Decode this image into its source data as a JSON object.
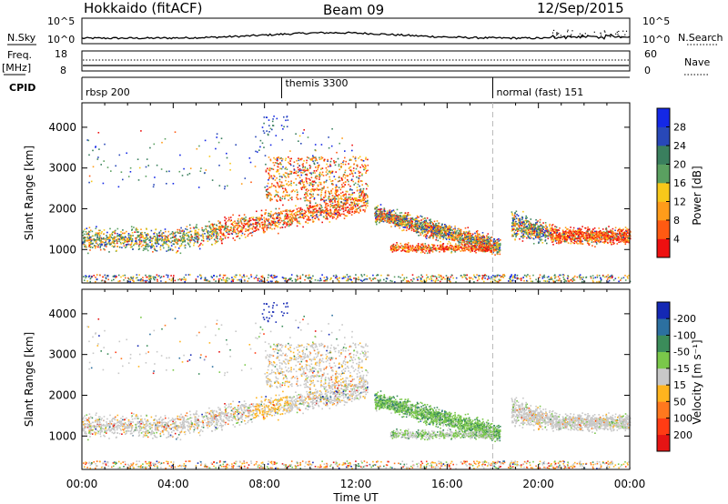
{
  "header": {
    "station": "Hokkaido (fitACF)",
    "beam": "Beam 09",
    "date": "12/Sep/2015"
  },
  "top_panels": {
    "nsky_label": "N.Sky",
    "nsky_ticks": [
      "10^5",
      "10^0"
    ],
    "nsearch_label": "N.Search",
    "nsearch_ticks": [
      "10^5",
      "10^0"
    ],
    "freq_label": "Freq.",
    "freq_unit": "[MHz]",
    "freq_ticks": [
      "18",
      "8"
    ],
    "nave_label": "Nave",
    "nave_ticks": [
      "60",
      "0"
    ],
    "cpid_label": "CPID",
    "cpid_segments": [
      {
        "label": "rbsp 200",
        "start_hour": 0
      },
      {
        "label": "themis 3300",
        "start_hour": 8.75
      },
      {
        "label": "normal (fast) 151",
        "start_hour": 18
      }
    ]
  },
  "chart_data": [
    {
      "type": "heatmap",
      "name": "power",
      "ylabel": "Slant Range [km]",
      "xlabel": "",
      "xlim": [
        0,
        24
      ],
      "ylim": [
        180,
        4600
      ],
      "yticks": [
        1000,
        2000,
        3000,
        4000
      ],
      "colorbar": {
        "label": "Power [dB]",
        "ticks": [
          4,
          8,
          12,
          16,
          20,
          24,
          28
        ],
        "colors": [
          "#1428e6",
          "#2848b8",
          "#3a7f5e",
          "#5aa060",
          "#f7c81a",
          "#ff9c1a",
          "#ff5a12",
          "#ee1010"
        ]
      }
    },
    {
      "type": "heatmap",
      "name": "velocity",
      "ylabel": "Slant Range [km]",
      "xlabel": "Time UT",
      "xlim": [
        0,
        24
      ],
      "ylim": [
        180,
        4600
      ],
      "yticks": [
        1000,
        2000,
        3000,
        4000
      ],
      "xticks": [
        "00:00",
        "04:00",
        "08:00",
        "12:00",
        "16:00",
        "20:00",
        "00:00"
      ],
      "colorbar": {
        "label": "Velocity [m s⁻¹]",
        "ticks": [
          "200",
          "100",
          "50",
          "15",
          "-15",
          "-50",
          "-100",
          "-200"
        ],
        "colors": [
          "#1428b4",
          "#2c70a0",
          "#3b8c5a",
          "#7ac84a",
          "#c8c8c8",
          "#ffb41e",
          "#ff781e",
          "#ff3c14",
          "#e61414"
        ]
      }
    }
  ]
}
